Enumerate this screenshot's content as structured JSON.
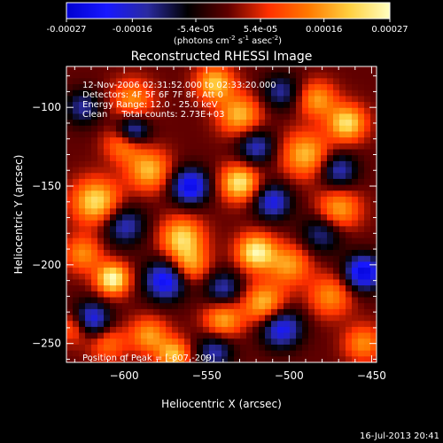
{
  "colorbar": {
    "min": -0.00027,
    "max": 0.00027,
    "tick_labels": [
      "-0.00027",
      "-0.00016",
      "-5.4e-05",
      "5.4e-05",
      "0.00016",
      "0.00027"
    ],
    "tick_values": [
      -0.00027,
      -0.00016,
      -5.4e-05,
      5.4e-05,
      0.00016,
      0.00027
    ],
    "stops": [
      "#0000d0",
      "#1818ff",
      "#2a2aa0",
      "#000000",
      "#600000",
      "#ff3000",
      "#ff7a00",
      "#ffd040",
      "#ffffc0"
    ],
    "unit_label": "(photons cm",
    "unit_exp1": "-2",
    "unit_mid": " s",
    "unit_exp2": "-1",
    "unit_tail": " asec",
    "unit_exp3": "-2",
    "unit_close": ")"
  },
  "chart_data": {
    "type": "heatmap",
    "title": "Reconstructed RHESSI Image",
    "xlabel": "Heliocentric X (arcsec)",
    "ylabel": "Heliocentric Y (arcsec)",
    "xlim": [
      -635,
      -447
    ],
    "ylim": [
      -262,
      -74
    ],
    "x_ticks": [
      -600,
      -550,
      -500,
      -450
    ],
    "x_tick_labels": [
      "−600",
      "−550",
      "−500",
      "−450"
    ],
    "y_ticks": [
      -250,
      -200,
      -150,
      -100
    ],
    "y_tick_labels": [
      "−250",
      "−200",
      "−150",
      "−100"
    ],
    "peak": {
      "x": -607,
      "y": -209
    },
    "sources": [
      {
        "x": -607,
        "y": -209,
        "v": 1.0,
        "w": 7
      },
      {
        "x": -617,
        "y": -160,
        "v": 0.85,
        "w": 10
      },
      {
        "x": -625,
        "y": -193,
        "v": 0.55,
        "w": 8
      },
      {
        "x": -600,
        "y": -123,
        "v": 0.6,
        "w": 8
      },
      {
        "x": -585,
        "y": -140,
        "v": 0.7,
        "w": 9
      },
      {
        "x": -595,
        "y": -95,
        "v": 0.55,
        "w": 9
      },
      {
        "x": -565,
        "y": -183,
        "v": 0.8,
        "w": 9
      },
      {
        "x": -560,
        "y": -200,
        "v": 0.6,
        "w": 8
      },
      {
        "x": -545,
        "y": -85,
        "v": 0.75,
        "w": 8
      },
      {
        "x": -530,
        "y": -105,
        "v": 0.7,
        "w": 9
      },
      {
        "x": -530,
        "y": -148,
        "v": 0.9,
        "w": 8
      },
      {
        "x": -520,
        "y": -192,
        "v": 0.95,
        "w": 8
      },
      {
        "x": -540,
        "y": -235,
        "v": 0.65,
        "w": 8
      },
      {
        "x": -515,
        "y": -225,
        "v": 0.75,
        "w": 9
      },
      {
        "x": -500,
        "y": -200,
        "v": 0.6,
        "w": 9
      },
      {
        "x": -490,
        "y": -130,
        "v": 0.7,
        "w": 10
      },
      {
        "x": -483,
        "y": -95,
        "v": 0.6,
        "w": 8
      },
      {
        "x": -470,
        "y": -165,
        "v": 0.65,
        "w": 9
      },
      {
        "x": -465,
        "y": -110,
        "v": 0.85,
        "w": 8
      },
      {
        "x": -475,
        "y": -220,
        "v": 0.55,
        "w": 9
      },
      {
        "x": -585,
        "y": -245,
        "v": 0.6,
        "w": 8
      },
      {
        "x": -570,
        "y": -257,
        "v": 0.7,
        "w": 7
      },
      {
        "x": -610,
        "y": -250,
        "v": 0.45,
        "w": 8
      },
      {
        "x": -455,
        "y": -250,
        "v": 0.55,
        "w": 8
      },
      {
        "x": -630,
        "y": -240,
        "v": 0.5,
        "w": 7
      },
      {
        "x": -595,
        "y": -115,
        "v": -0.8,
        "w": 7
      },
      {
        "x": -560,
        "y": -150,
        "v": -0.9,
        "w": 8
      },
      {
        "x": -575,
        "y": -210,
        "v": -0.85,
        "w": 9
      },
      {
        "x": -620,
        "y": -235,
        "v": -0.8,
        "w": 8
      },
      {
        "x": -510,
        "y": -160,
        "v": -0.7,
        "w": 8
      },
      {
        "x": -505,
        "y": -240,
        "v": -0.8,
        "w": 9
      },
      {
        "x": -455,
        "y": -205,
        "v": -0.95,
        "w": 8
      },
      {
        "x": -470,
        "y": -140,
        "v": -0.6,
        "w": 8
      },
      {
        "x": -540,
        "y": -215,
        "v": -0.55,
        "w": 8
      },
      {
        "x": -600,
        "y": -175,
        "v": -0.6,
        "w": 9
      },
      {
        "x": -520,
        "y": -125,
        "v": -0.6,
        "w": 8
      },
      {
        "x": -480,
        "y": -180,
        "v": -0.5,
        "w": 9
      },
      {
        "x": -625,
        "y": -100,
        "v": -0.5,
        "w": 8
      },
      {
        "x": -545,
        "y": -255,
        "v": -0.55,
        "w": 8
      },
      {
        "x": -505,
        "y": -90,
        "v": -0.5,
        "w": 8
      }
    ]
  },
  "annotations": {
    "line1": "12-Nov-2006 02:31:52.000 to 02:33:20.000",
    "line2": "Detectors: 4F 5F 6F 7F 8F, Att 0",
    "line3": "Energy Range: 12.0 - 25.0 keV",
    "line4": "Clean     Total counts: 2.73E+03",
    "peak_label": "Position of Peak = [-607,-209]"
  },
  "footer": {
    "timestamp": "16-Jul-2013 20:41"
  }
}
